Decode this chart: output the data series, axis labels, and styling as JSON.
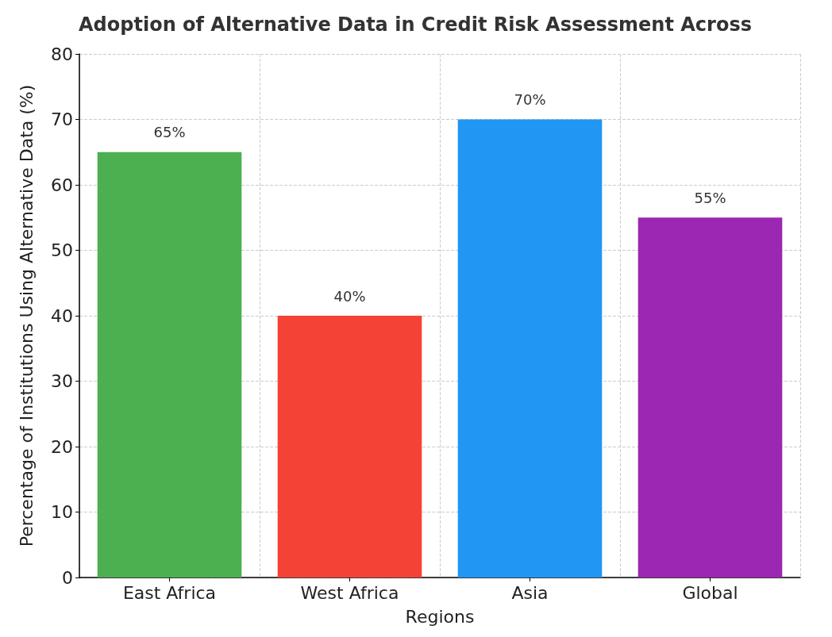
{
  "chart_data": {
    "type": "bar",
    "title": "Adoption of Alternative Data in Credit Risk Assessment Across",
    "xlabel": "Regions",
    "ylabel": "Percentage of Institutions Using Alternative Data (%)",
    "categories": [
      "East Africa",
      "West Africa",
      "Asia",
      "Global"
    ],
    "values": [
      65,
      40,
      70,
      55
    ],
    "colors": [
      "#4caf50",
      "#f44336",
      "#2196f3",
      "#9c27b0"
    ],
    "value_labels": [
      "65%",
      "40%",
      "70%",
      "55%"
    ],
    "ylim": [
      0,
      80
    ],
    "yticks": [
      0,
      10,
      20,
      30,
      40,
      50,
      60,
      70,
      80
    ],
    "grid": true
  }
}
